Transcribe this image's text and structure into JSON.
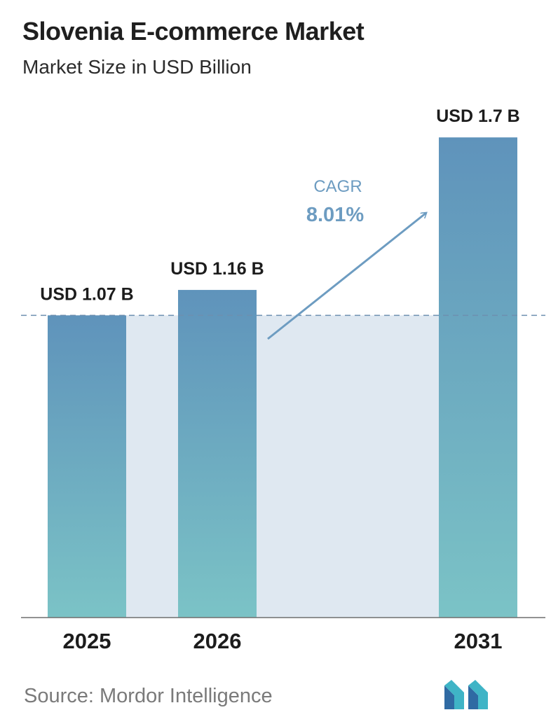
{
  "header": {
    "title": "Slovenia E-commerce Market",
    "subtitle": "Market Size in USD Billion"
  },
  "chart_data": {
    "type": "bar",
    "title": "Slovenia E-commerce Market",
    "subtitle": "Market Size in USD Billion",
    "categories": [
      "2025",
      "2026",
      "2031"
    ],
    "values": [
      1.07,
      1.16,
      1.7
    ],
    "value_labels": [
      "USD 1.07 B",
      "USD 1.16 B",
      "USD 1.7 B"
    ],
    "xlabel": "",
    "ylabel": "",
    "ylim": [
      0,
      1.77
    ],
    "reference_line": 1.07,
    "annotation": {
      "label": "CAGR",
      "value": "8.01%"
    },
    "colors": {
      "bar_top": "#5f93bb",
      "bar_bottom": "#7bc3c6",
      "shade": "#dfe8f1",
      "arrow": "#6d9cc1",
      "cagr_text": "#6d9cc1",
      "dashed": "#6d8fb0"
    }
  },
  "footer": {
    "source": "Source:  Mordor Intelligence",
    "logo_icon": "mordor-intelligence-logo-icon"
  }
}
